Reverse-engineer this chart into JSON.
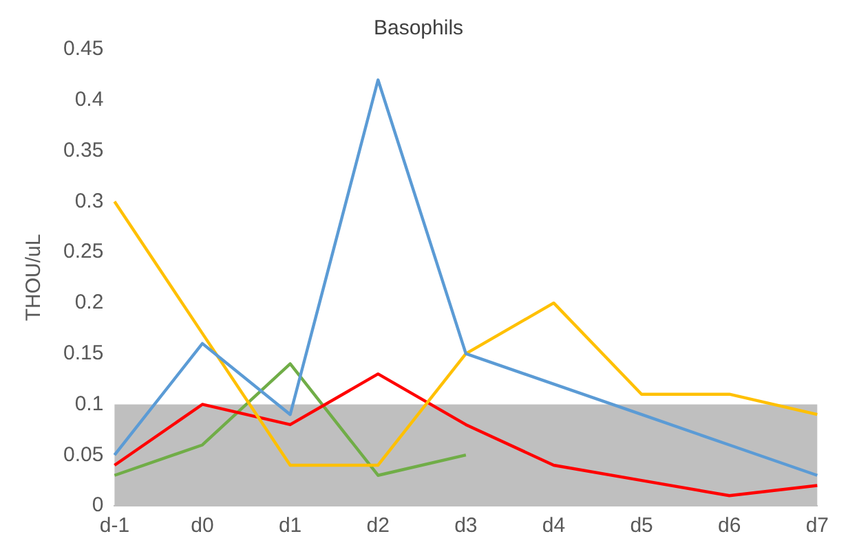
{
  "chart_data": {
    "type": "line",
    "title": "Basophils",
    "ylabel": "THOU/uL",
    "categories": [
      "d-1",
      "d0",
      "d1",
      "d2",
      "d3",
      "d4",
      "d5",
      "d6",
      "d7"
    ],
    "series": [
      {
        "color": "#5b9bd5",
        "values": [
          0.05,
          0.16,
          0.09,
          0.42,
          0.15,
          0.12,
          0.09,
          0.06,
          0.03
        ]
      },
      {
        "color": "#ffc000",
        "values": [
          0.3,
          0.17,
          0.04,
          0.04,
          0.15,
          0.2,
          0.11,
          0.11,
          0.09
        ]
      },
      {
        "color": "#ff0000",
        "values": [
          0.04,
          0.1,
          0.08,
          0.13,
          0.08,
          0.04,
          0.025,
          0.01,
          0.02
        ]
      },
      {
        "color": "#70ad47",
        "values": [
          0.03,
          0.06,
          0.14,
          0.03,
          0.05,
          null,
          null,
          null,
          null
        ]
      }
    ],
    "ylim": [
      0,
      0.45
    ],
    "yticks": [
      0,
      0.05,
      0.1,
      0.15,
      0.2,
      0.25,
      0.3,
      0.35,
      0.4,
      0.45
    ],
    "bands": [
      {
        "axis": "y",
        "from": 0,
        "to": 0.1,
        "color": "#bfbfbf"
      }
    ],
    "grid": false,
    "legend": false,
    "marker": "none",
    "line_style": "solid"
  }
}
